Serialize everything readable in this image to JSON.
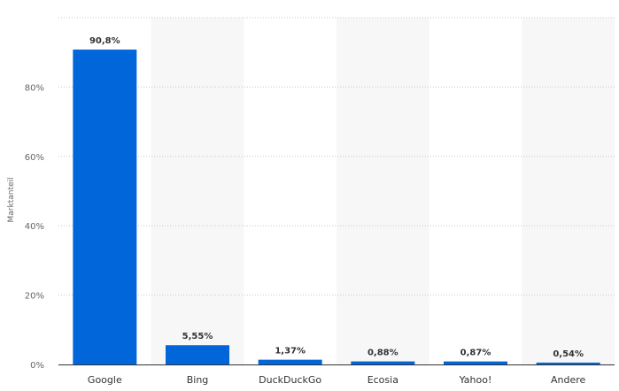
{
  "chart_data": {
    "type": "bar",
    "categories": [
      "Google",
      "Bing",
      "DuckDuckGo",
      "Ecosia",
      "Yahoo!",
      "Andere"
    ],
    "values": [
      90.8,
      5.55,
      1.37,
      0.88,
      0.87,
      0.54
    ],
    "value_labels": [
      "90,8%",
      "5,55%",
      "1,37%",
      "0,88%",
      "0,87%",
      "0,54%"
    ],
    "ylabel": "Marktanteil",
    "ylim": [
      0,
      100
    ],
    "yticks": [
      0,
      20,
      40,
      60,
      80
    ],
    "ytick_labels": [
      "0%",
      "20%",
      "40%",
      "60%",
      "80%"
    ],
    "grid": true,
    "colors": {
      "bar": "#0066d9",
      "band": "#f7f7f7",
      "grid": "#c8c8c8",
      "baseline": "#333333"
    }
  }
}
